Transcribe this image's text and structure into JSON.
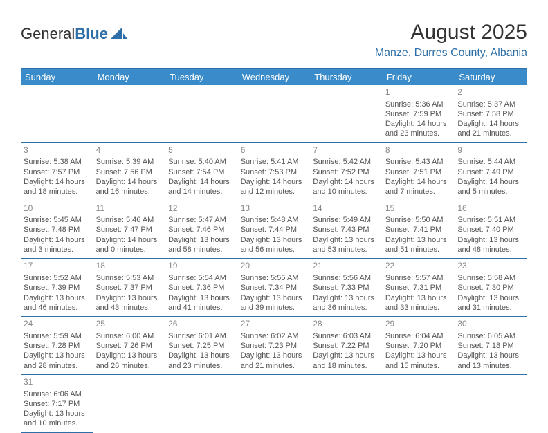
{
  "logo": {
    "textA": "General",
    "textB": "Blue"
  },
  "title": "August 2025",
  "location": "Manze, Durres County, Albania",
  "styling": {
    "accent_color": "#2f6fa7",
    "header_bg": "#3a8bc9",
    "header_text_color": "#ffffff",
    "body_text_color": "#555555",
    "daynum_color": "#888888",
    "background_color": "#ffffff",
    "title_fontsize": 30,
    "location_fontsize": 16,
    "dayheader_fontsize": 13,
    "cell_fontsize": 11,
    "columns": 7
  },
  "day_headers": [
    "Sunday",
    "Monday",
    "Tuesday",
    "Wednesday",
    "Thursday",
    "Friday",
    "Saturday"
  ],
  "weeks": [
    [
      null,
      null,
      null,
      null,
      null,
      {
        "n": "1",
        "sr": "Sunrise: 5:36 AM",
        "ss": "Sunset: 7:59 PM",
        "d1": "Daylight: 14 hours",
        "d2": "and 23 minutes."
      },
      {
        "n": "2",
        "sr": "Sunrise: 5:37 AM",
        "ss": "Sunset: 7:58 PM",
        "d1": "Daylight: 14 hours",
        "d2": "and 21 minutes."
      }
    ],
    [
      {
        "n": "3",
        "sr": "Sunrise: 5:38 AM",
        "ss": "Sunset: 7:57 PM",
        "d1": "Daylight: 14 hours",
        "d2": "and 18 minutes."
      },
      {
        "n": "4",
        "sr": "Sunrise: 5:39 AM",
        "ss": "Sunset: 7:56 PM",
        "d1": "Daylight: 14 hours",
        "d2": "and 16 minutes."
      },
      {
        "n": "5",
        "sr": "Sunrise: 5:40 AM",
        "ss": "Sunset: 7:54 PM",
        "d1": "Daylight: 14 hours",
        "d2": "and 14 minutes."
      },
      {
        "n": "6",
        "sr": "Sunrise: 5:41 AM",
        "ss": "Sunset: 7:53 PM",
        "d1": "Daylight: 14 hours",
        "d2": "and 12 minutes."
      },
      {
        "n": "7",
        "sr": "Sunrise: 5:42 AM",
        "ss": "Sunset: 7:52 PM",
        "d1": "Daylight: 14 hours",
        "d2": "and 10 minutes."
      },
      {
        "n": "8",
        "sr": "Sunrise: 5:43 AM",
        "ss": "Sunset: 7:51 PM",
        "d1": "Daylight: 14 hours",
        "d2": "and 7 minutes."
      },
      {
        "n": "9",
        "sr": "Sunrise: 5:44 AM",
        "ss": "Sunset: 7:49 PM",
        "d1": "Daylight: 14 hours",
        "d2": "and 5 minutes."
      }
    ],
    [
      {
        "n": "10",
        "sr": "Sunrise: 5:45 AM",
        "ss": "Sunset: 7:48 PM",
        "d1": "Daylight: 14 hours",
        "d2": "and 3 minutes."
      },
      {
        "n": "11",
        "sr": "Sunrise: 5:46 AM",
        "ss": "Sunset: 7:47 PM",
        "d1": "Daylight: 14 hours",
        "d2": "and 0 minutes."
      },
      {
        "n": "12",
        "sr": "Sunrise: 5:47 AM",
        "ss": "Sunset: 7:46 PM",
        "d1": "Daylight: 13 hours",
        "d2": "and 58 minutes."
      },
      {
        "n": "13",
        "sr": "Sunrise: 5:48 AM",
        "ss": "Sunset: 7:44 PM",
        "d1": "Daylight: 13 hours",
        "d2": "and 56 minutes."
      },
      {
        "n": "14",
        "sr": "Sunrise: 5:49 AM",
        "ss": "Sunset: 7:43 PM",
        "d1": "Daylight: 13 hours",
        "d2": "and 53 minutes."
      },
      {
        "n": "15",
        "sr": "Sunrise: 5:50 AM",
        "ss": "Sunset: 7:41 PM",
        "d1": "Daylight: 13 hours",
        "d2": "and 51 minutes."
      },
      {
        "n": "16",
        "sr": "Sunrise: 5:51 AM",
        "ss": "Sunset: 7:40 PM",
        "d1": "Daylight: 13 hours",
        "d2": "and 48 minutes."
      }
    ],
    [
      {
        "n": "17",
        "sr": "Sunrise: 5:52 AM",
        "ss": "Sunset: 7:39 PM",
        "d1": "Daylight: 13 hours",
        "d2": "and 46 minutes."
      },
      {
        "n": "18",
        "sr": "Sunrise: 5:53 AM",
        "ss": "Sunset: 7:37 PM",
        "d1": "Daylight: 13 hours",
        "d2": "and 43 minutes."
      },
      {
        "n": "19",
        "sr": "Sunrise: 5:54 AM",
        "ss": "Sunset: 7:36 PM",
        "d1": "Daylight: 13 hours",
        "d2": "and 41 minutes."
      },
      {
        "n": "20",
        "sr": "Sunrise: 5:55 AM",
        "ss": "Sunset: 7:34 PM",
        "d1": "Daylight: 13 hours",
        "d2": "and 39 minutes."
      },
      {
        "n": "21",
        "sr": "Sunrise: 5:56 AM",
        "ss": "Sunset: 7:33 PM",
        "d1": "Daylight: 13 hours",
        "d2": "and 36 minutes."
      },
      {
        "n": "22",
        "sr": "Sunrise: 5:57 AM",
        "ss": "Sunset: 7:31 PM",
        "d1": "Daylight: 13 hours",
        "d2": "and 33 minutes."
      },
      {
        "n": "23",
        "sr": "Sunrise: 5:58 AM",
        "ss": "Sunset: 7:30 PM",
        "d1": "Daylight: 13 hours",
        "d2": "and 31 minutes."
      }
    ],
    [
      {
        "n": "24",
        "sr": "Sunrise: 5:59 AM",
        "ss": "Sunset: 7:28 PM",
        "d1": "Daylight: 13 hours",
        "d2": "and 28 minutes."
      },
      {
        "n": "25",
        "sr": "Sunrise: 6:00 AM",
        "ss": "Sunset: 7:26 PM",
        "d1": "Daylight: 13 hours",
        "d2": "and 26 minutes."
      },
      {
        "n": "26",
        "sr": "Sunrise: 6:01 AM",
        "ss": "Sunset: 7:25 PM",
        "d1": "Daylight: 13 hours",
        "d2": "and 23 minutes."
      },
      {
        "n": "27",
        "sr": "Sunrise: 6:02 AM",
        "ss": "Sunset: 7:23 PM",
        "d1": "Daylight: 13 hours",
        "d2": "and 21 minutes."
      },
      {
        "n": "28",
        "sr": "Sunrise: 6:03 AM",
        "ss": "Sunset: 7:22 PM",
        "d1": "Daylight: 13 hours",
        "d2": "and 18 minutes."
      },
      {
        "n": "29",
        "sr": "Sunrise: 6:04 AM",
        "ss": "Sunset: 7:20 PM",
        "d1": "Daylight: 13 hours",
        "d2": "and 15 minutes."
      },
      {
        "n": "30",
        "sr": "Sunrise: 6:05 AM",
        "ss": "Sunset: 7:18 PM",
        "d1": "Daylight: 13 hours",
        "d2": "and 13 minutes."
      }
    ],
    [
      {
        "n": "31",
        "sr": "Sunrise: 6:06 AM",
        "ss": "Sunset: 7:17 PM",
        "d1": "Daylight: 13 hours",
        "d2": "and 10 minutes."
      },
      null,
      null,
      null,
      null,
      null,
      null
    ]
  ]
}
